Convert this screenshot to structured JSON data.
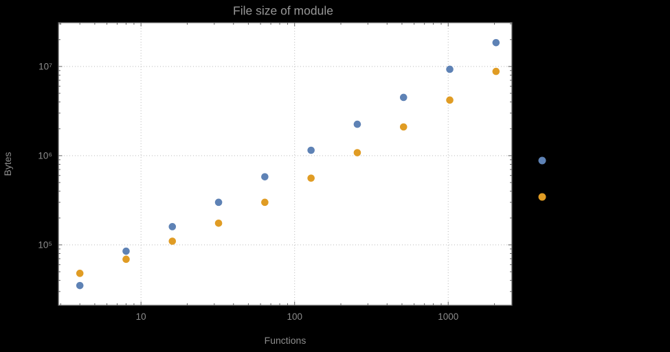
{
  "chart_data": {
    "type": "scatter",
    "title": "File size of module",
    "xlabel": "Functions",
    "ylabel": "Bytes",
    "x_scale": "log",
    "y_scale": "log",
    "xlim": [
      2.9,
      2600
    ],
    "ylim": [
      21000,
      31000000
    ],
    "grid": "dotted",
    "x": [
      4,
      8,
      16,
      32,
      64,
      128,
      256,
      512,
      1024,
      2048
    ],
    "series": [
      {
        "color": "#5e82b5",
        "values": [
          35000,
          85000,
          160000,
          300000,
          580000,
          1150000,
          2250000,
          4500000,
          9300000,
          18500000
        ]
      },
      {
        "color": "#e09c24",
        "values": [
          48000,
          69000,
          110000,
          175000,
          300000,
          560000,
          1080000,
          2100000,
          4200000,
          8800000
        ]
      }
    ],
    "x_ticks": [
      {
        "value": 10,
        "label": "10"
      },
      {
        "value": 100,
        "label": "100"
      },
      {
        "value": 1000,
        "label": "1000"
      }
    ],
    "y_ticks": [
      {
        "value": 100000,
        "label": "10⁵"
      },
      {
        "value": 1000000,
        "label": "10⁶"
      },
      {
        "value": 10000000,
        "label": "10⁷"
      }
    ],
    "legend_position": "right",
    "legend_markers": [
      {
        "color": "#5e82b5"
      },
      {
        "color": "#e09c24"
      }
    ]
  }
}
